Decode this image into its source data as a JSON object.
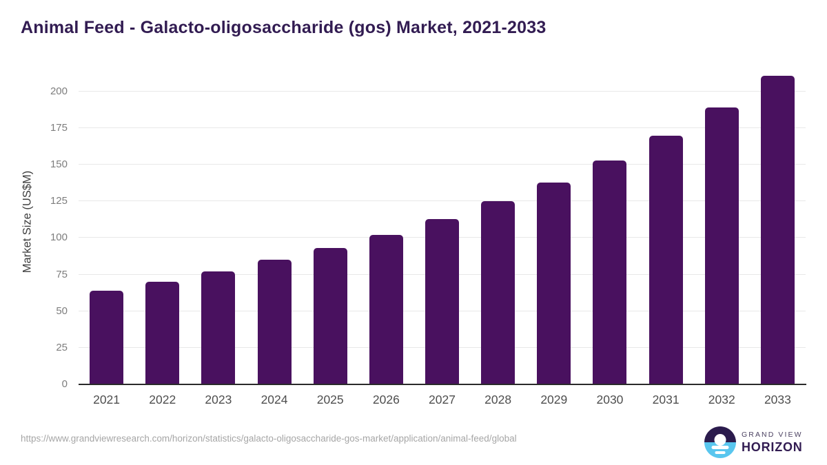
{
  "header": {
    "title": "Animal Feed - Galacto-oligosaccharide (gos) Market, 2021-2033"
  },
  "chart_data": {
    "type": "bar",
    "title": "Animal Feed - Galacto-oligosaccharide (gos) Market, 2021-2033",
    "categories": [
      "2021",
      "2022",
      "2023",
      "2024",
      "2025",
      "2026",
      "2027",
      "2028",
      "2029",
      "2030",
      "2031",
      "2032",
      "2033"
    ],
    "values": [
      64,
      70,
      77,
      85,
      93,
      102,
      113,
      125,
      138,
      153,
      170,
      189,
      211
    ],
    "xlabel": "",
    "ylabel": "Market Size (US$M)",
    "ylim": [
      0,
      215.5
    ],
    "yticks": [
      0,
      25,
      50,
      75,
      100,
      125,
      150,
      175,
      200
    ],
    "grid": true,
    "legend_position": "none",
    "bar_color": "#49115f",
    "gridline_color": "#e8e8e8",
    "title_color": "#321c52"
  },
  "footer": {
    "source_url": "https://www.grandviewresearch.com/horizon/statistics/galacto-oligosaccharide-gos-market/application/animal-feed/global",
    "logo": {
      "brand_top": "GRAND VIEW",
      "brand_bottom": "HORIZON",
      "icon": "sunrise-horizon-icon",
      "icon_dark_color": "#2b1b4d",
      "icon_blue_color": "#59c6ee"
    }
  }
}
